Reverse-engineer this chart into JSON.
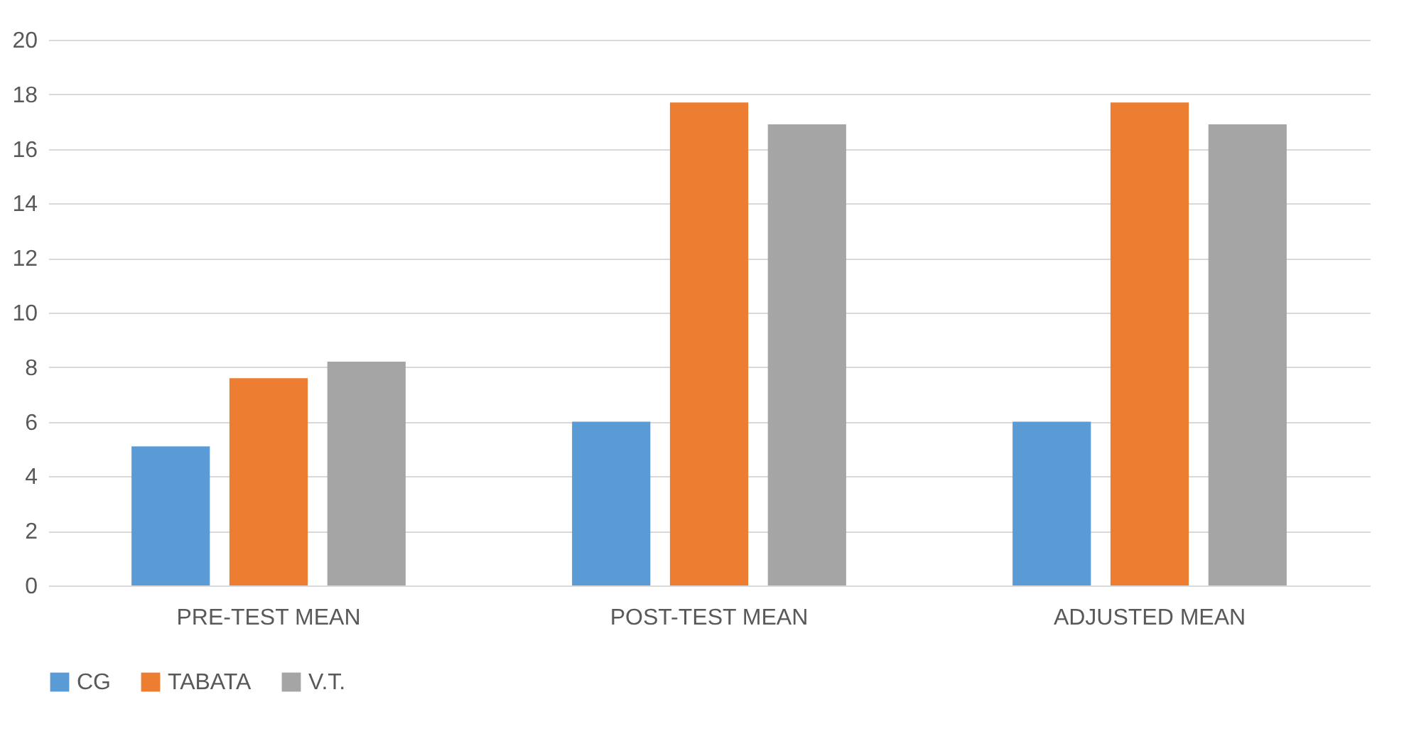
{
  "chart_data": {
    "type": "bar",
    "categories": [
      "PRE-TEST MEAN",
      "POST-TEST MEAN",
      "ADJUSTED MEAN"
    ],
    "series": [
      {
        "name": "CG",
        "color": "#5b9bd5",
        "values": [
          5.1,
          6.0,
          6.0
        ]
      },
      {
        "name": "TABATA",
        "color": "#ed7d31",
        "values": [
          7.6,
          17.7,
          17.7
        ]
      },
      {
        "name": "V.T.",
        "color": "#a5a5a5",
        "values": [
          8.2,
          16.9,
          16.9
        ]
      }
    ],
    "ylim": [
      0,
      20
    ],
    "yticks": [
      0,
      2,
      4,
      6,
      8,
      10,
      12,
      14,
      16,
      18,
      20
    ],
    "grid": "y",
    "legend": "bottom"
  }
}
